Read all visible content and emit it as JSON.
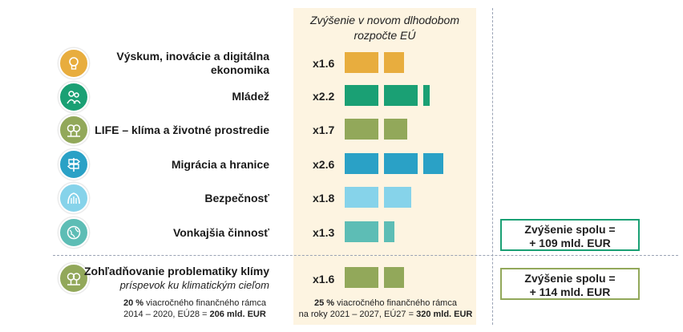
{
  "chart_data": {
    "type": "bar",
    "title": "Zvýšenie v novom dlhodobom rozpočte EÚ",
    "categories": [
      "Výskum, inovácie a digitálna ekonomika",
      "Mládež",
      "LIFE – klíma a životné prostredie",
      "Migrácia a hranice",
      "Bezpečnosť",
      "Vonkajšia činnosť",
      "Zohľadňovanie problematiky klímy"
    ],
    "values": [
      1.6,
      2.2,
      1.7,
      2.6,
      1.8,
      1.3,
      1.6
    ],
    "value_labels": [
      "x1.6",
      "x2.2",
      "x1.7",
      "x2.6",
      "x1.8",
      "x1.3",
      "x1.6"
    ],
    "colors": [
      "#e8ad3e",
      "#1aa074",
      "#92a85a",
      "#2aa1c6",
      "#86d3ea",
      "#5dbdb5",
      "#92a85a"
    ]
  },
  "header": {
    "line1": "Zvýšenie v novom dlhodobom",
    "line2": "rozpočte EÚ"
  },
  "rows": [
    {
      "label_line1": "Výskum, inovácie a digitálna",
      "label_line2": "ekonomika",
      "mult": "x1.6",
      "icon": "lightbulb-icon",
      "color": "#e8ad3e"
    },
    {
      "label_line1": "Mládež",
      "label_line2": "",
      "mult": "x2.2",
      "icon": "youth-icon",
      "color": "#1aa074"
    },
    {
      "label_line1": "LIFE – klíma a životné prostredie",
      "label_line2": "",
      "mult": "x1.7",
      "icon": "trees-icon",
      "color": "#92a85a"
    },
    {
      "label_line1": "Migrácia a hranice",
      "label_line2": "",
      "mult": "x2.6",
      "icon": "signpost-icon",
      "color": "#2aa1c6"
    },
    {
      "label_line1": "Bezpečnosť",
      "label_line2": "",
      "mult": "x1.8",
      "icon": "security-hands-icon",
      "color": "#86d3ea"
    },
    {
      "label_line1": "Vonkajšia činnosť",
      "label_line2": "",
      "mult": "x1.3",
      "icon": "globe-icon",
      "color": "#5dbdb5"
    }
  ],
  "climate": {
    "label": "Zohľadňovanie problematiky klímy",
    "sublabel": "príspevok ku klimatickým cieľom",
    "mult": "x1.6",
    "icon": "trees-icon",
    "old_pct": "20 %",
    "old_text1": "viacročného finančného rámca",
    "old_text2": "2014 – 2020, EÚ28 =",
    "old_amount": "206 mld. EUR",
    "new_pct": "25 %",
    "new_text1": "viacročného finančného rámca",
    "new_text2": "na roky 2021 – 2027, EÚ27 =",
    "new_amount": "320 mld. EUR"
  },
  "totals": {
    "box1_line1": "Zvýšenie spolu =",
    "box1_line2": "+ 109 mld. EUR",
    "box1_color": "#1aa074",
    "box2_line1": "Zvýšenie spolu =",
    "box2_line2": "+ 114 mld. EUR",
    "box2_color": "#92a85a"
  }
}
